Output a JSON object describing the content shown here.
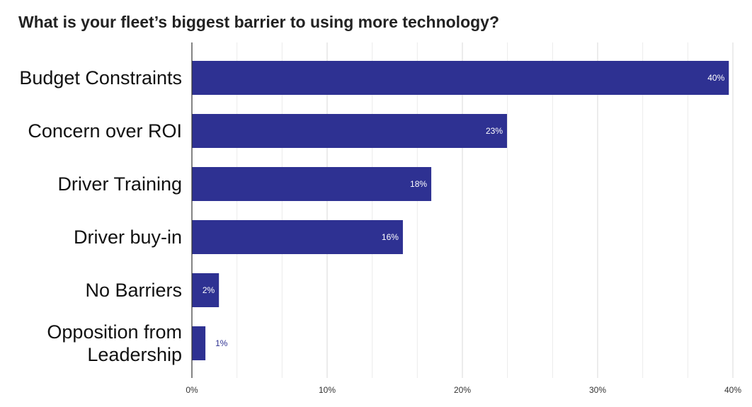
{
  "chart_data": {
    "type": "bar",
    "orientation": "horizontal",
    "title": "What is your fleet’s biggest barrier to using more technology?",
    "categories": [
      [
        "Budget Constraints"
      ],
      [
        "Concern over ROI"
      ],
      [
        "Driver Training"
      ],
      [
        "Driver buy-in"
      ],
      [
        "No Barriers"
      ],
      [
        "Opposition from",
        "Leadership"
      ]
    ],
    "values": [
      39.7,
      23.3,
      17.7,
      15.6,
      2.0,
      1.0
    ],
    "data_labels": [
      "40%",
      "23%",
      "18%",
      "16%",
      "2%",
      "1%"
    ],
    "xlim": [
      0,
      40
    ],
    "xticks": [
      0,
      10,
      20,
      30,
      40
    ],
    "xtick_labels": [
      "0%",
      "10%",
      "20%",
      "30%",
      "40%"
    ],
    "xlabel": "",
    "ylabel": "",
    "grid": true,
    "bar_color": "#2e3192",
    "inside_label_color": "#ffffff",
    "outside_label_color": "#2e3192",
    "gridline_color": "#d9d9d9",
    "axis_color": "#333333"
  }
}
